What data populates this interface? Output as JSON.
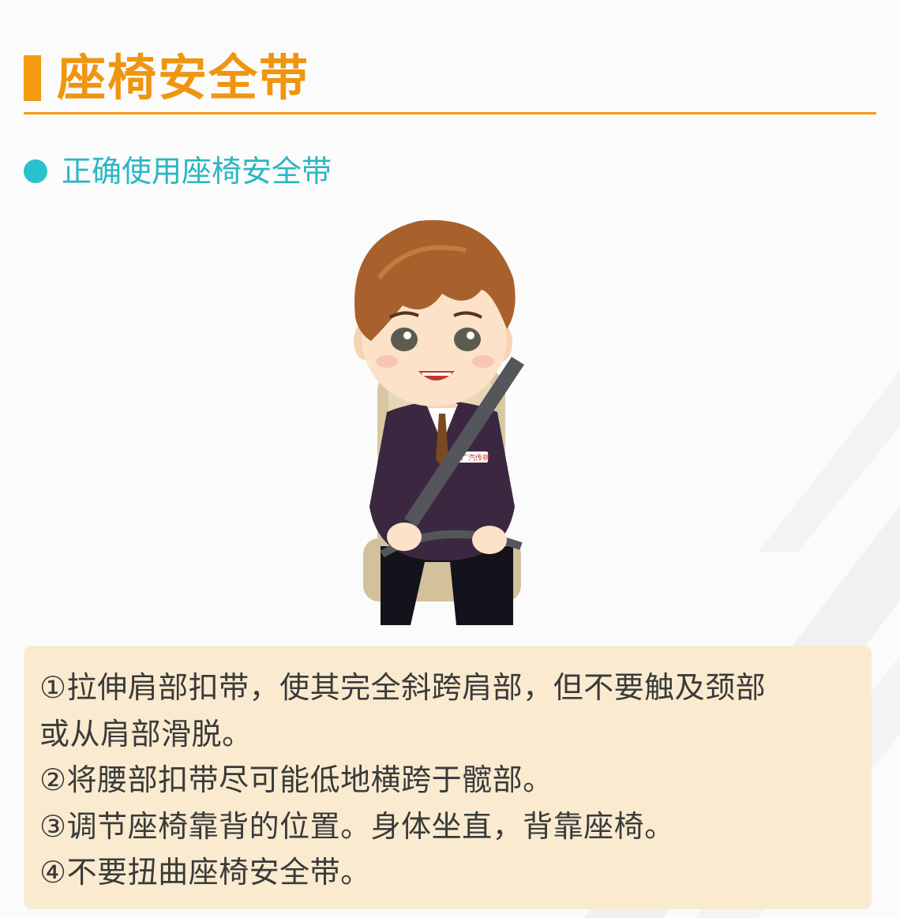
{
  "header": {
    "title": "座椅安全带"
  },
  "section": {
    "heading": "正确使用座椅安全带"
  },
  "illustration": {
    "badge_text": "广汽传祺",
    "colors": {
      "hair": "#a8612c",
      "suit": "#3d2740",
      "seat": "#d9c9a4",
      "belt": "#55565c",
      "skin": "#fbe2c8"
    }
  },
  "notes": {
    "lines": [
      "①拉伸肩部扣带，使其完全斜跨肩部，但不要触及颈部",
      "或从肩部滑脱。",
      "②将腰部扣带尽可能低地横跨于髋部。",
      "③调节座椅靠背的位置。身体坐直，背靠座椅。",
      "④不要扭曲座椅安全带。"
    ]
  },
  "colors": {
    "accent": "#f39c12",
    "teal": "#29b6c4",
    "note_bg": "#faebd0"
  }
}
